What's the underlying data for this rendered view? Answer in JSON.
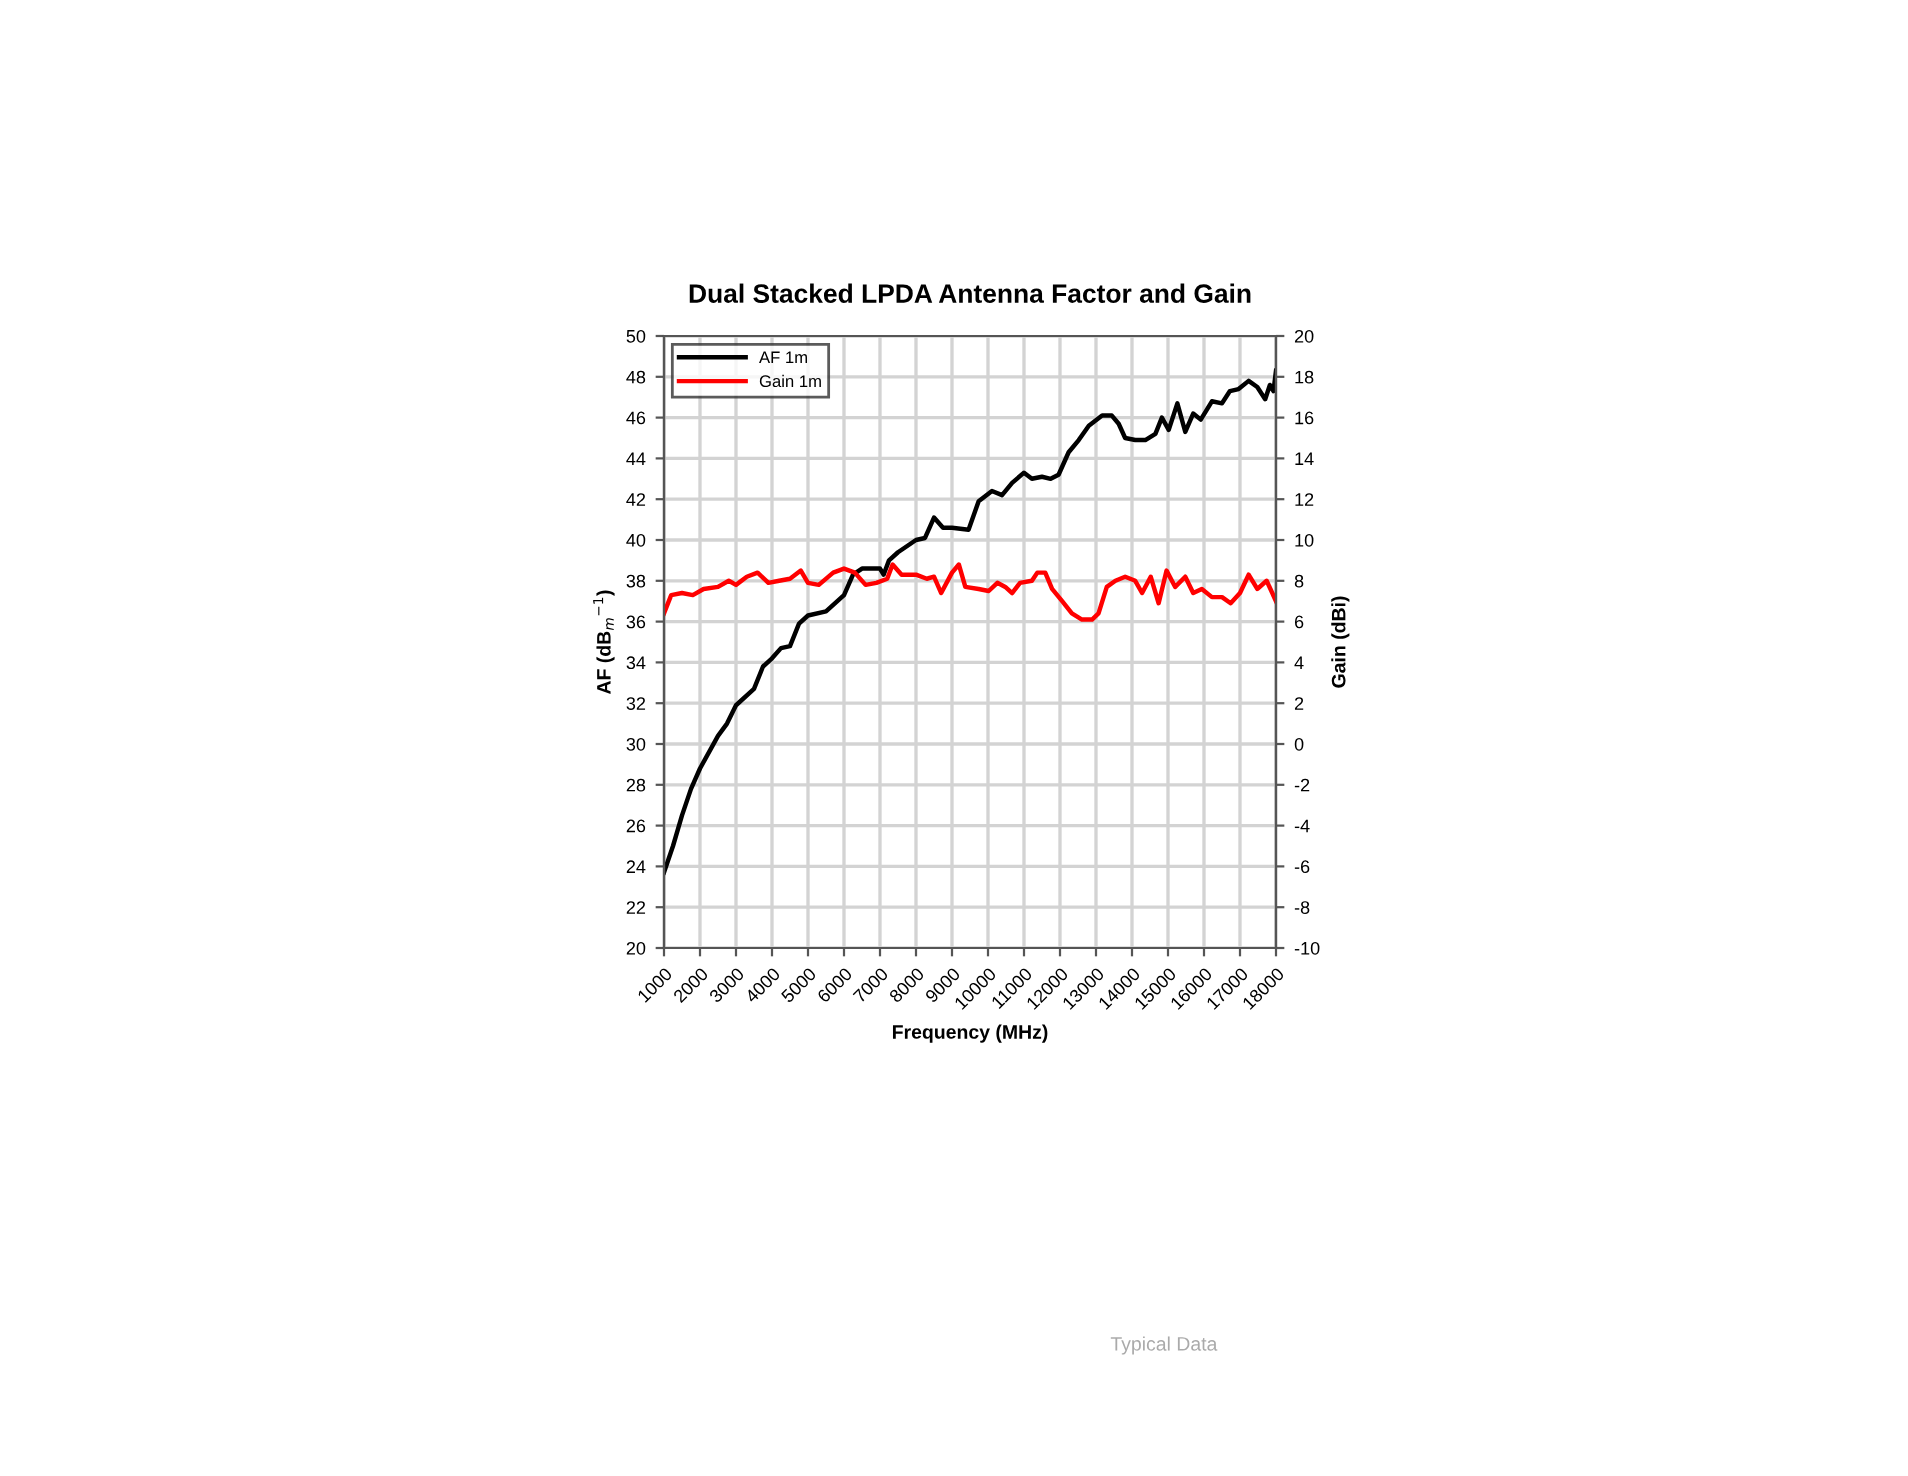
{
  "chart_data": {
    "type": "line",
    "title": "Dual Stacked LPDA Antenna Factor and Gain",
    "xlabel": "Frequency (MHz)",
    "ylabel": "AF (dB$_{m}$$^{−1}$)",
    "y2label": "Gain (dBi)",
    "annotations": [
      "Typical Data"
    ],
    "xlim": [
      1000,
      18000
    ],
    "xticks": [
      1000,
      2000,
      3000,
      4000,
      5000,
      6000,
      7000,
      8000,
      9000,
      10000,
      11000,
      12000,
      13000,
      14000,
      15000,
      16000,
      17000,
      18000
    ],
    "ylim": [
      20,
      50
    ],
    "yticks": [
      20,
      22,
      24,
      26,
      28,
      30,
      32,
      34,
      36,
      38,
      40,
      42,
      44,
      46,
      48,
      50
    ],
    "y2lim": [
      -10,
      20
    ],
    "y2ticks": [
      -10,
      -8,
      -6,
      -4,
      -2,
      0,
      2,
      4,
      6,
      8,
      10,
      12,
      14,
      16,
      18,
      20
    ],
    "grid": true,
    "legend": "top left",
    "line_style": "solid",
    "marker": "none",
    "series": [
      {
        "name": "AF 1m",
        "color": "#000000",
        "x": [
          1000,
          1250,
          1500,
          1750,
          2000,
          2500,
          2750,
          3000,
          3500,
          3750,
          4000,
          4250,
          4500,
          4750,
          5000,
          5500,
          6000,
          6250,
          6500,
          7000,
          7100,
          7250,
          7500,
          8000,
          8250,
          8500,
          8750,
          9000,
          9460,
          9740,
          10110,
          10390,
          10670,
          11000,
          11220,
          11500,
          11740,
          11960,
          12240,
          12520,
          12800,
          13170,
          13440,
          13630,
          13810,
          14090,
          14370,
          14650,
          14830,
          15020,
          15260,
          15480,
          15700,
          15910,
          16220,
          16500,
          16720,
          16960,
          17240,
          17480,
          17700,
          17830,
          17930,
          18000
        ],
        "values": [
          23.7,
          25.0,
          26.5,
          27.8,
          28.8,
          30.4,
          31.0,
          31.9,
          32.7,
          33.8,
          34.2,
          34.7,
          34.8,
          35.9,
          36.3,
          36.5,
          37.3,
          38.3,
          38.6,
          38.6,
          38.3,
          39.0,
          39.4,
          40.0,
          40.1,
          41.1,
          40.6,
          40.6,
          40.5,
          41.9,
          42.4,
          42.2,
          42.8,
          43.3,
          43.0,
          43.1,
          43.0,
          43.2,
          44.3,
          44.9,
          45.6,
          46.1,
          46.1,
          45.7,
          45.0,
          44.9,
          44.9,
          45.2,
          46.0,
          45.4,
          46.7,
          45.3,
          46.2,
          45.9,
          46.8,
          46.7,
          47.3,
          47.4,
          47.8,
          47.5,
          46.9,
          47.6,
          47.3,
          48.3
        ]
      },
      {
        "name": "Gain 1m",
        "color": "#ff0000",
        "axis": "y2",
        "x": [
          1000,
          1200,
          1500,
          1800,
          2100,
          2500,
          2800,
          3000,
          3300,
          3600,
          3900,
          4200,
          4500,
          4800,
          5000,
          5300,
          5700,
          6000,
          6300,
          6600,
          6900,
          7200,
          7350,
          7600,
          8000,
          8300,
          8500,
          8700,
          9000,
          9190,
          9370,
          9740,
          10020,
          10260,
          10480,
          10670,
          10890,
          11220,
          11370,
          11590,
          11780,
          12060,
          12330,
          12610,
          12890,
          13070,
          13300,
          13540,
          13810,
          14090,
          14280,
          14520,
          14740,
          14960,
          15200,
          15480,
          15700,
          15940,
          16220,
          16500,
          16740,
          17000,
          17240,
          17480,
          17740,
          18000
        ],
        "values": [
          6.4,
          7.3,
          7.4,
          7.3,
          7.6,
          7.7,
          8.0,
          7.8,
          8.2,
          8.4,
          7.9,
          8.0,
          8.1,
          8.5,
          7.9,
          7.8,
          8.4,
          8.6,
          8.4,
          7.8,
          7.9,
          8.1,
          8.8,
          8.3,
          8.3,
          8.1,
          8.2,
          7.4,
          8.4,
          8.8,
          7.7,
          7.6,
          7.5,
          7.9,
          7.7,
          7.4,
          7.9,
          8.0,
          8.4,
          8.4,
          7.6,
          7.0,
          6.4,
          6.1,
          6.1,
          6.4,
          7.7,
          8.0,
          8.2,
          8.0,
          7.4,
          8.2,
          6.9,
          8.5,
          7.7,
          8.2,
          7.4,
          7.6,
          7.2,
          7.2,
          6.9,
          7.4,
          8.3,
          7.6,
          8.0,
          7.0
        ]
      }
    ]
  }
}
